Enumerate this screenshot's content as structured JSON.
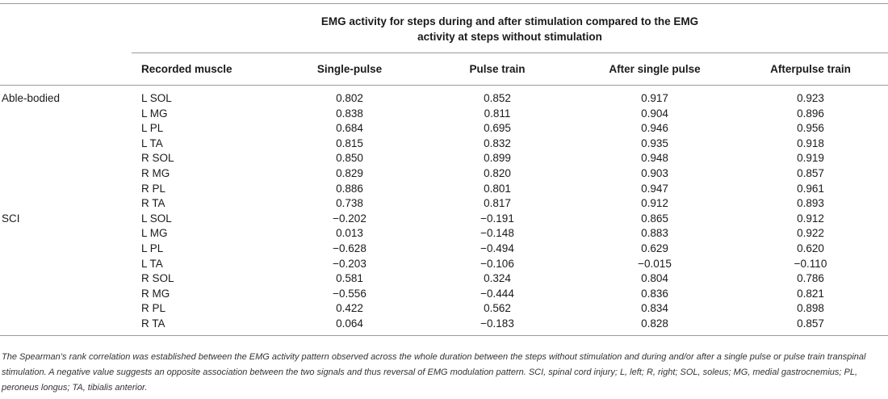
{
  "table": {
    "group_header": "EMG activity for steps during and after stimulation compared to the EMG activity at steps without stimulation",
    "columns": [
      "",
      "Recorded muscle",
      "Single-pulse",
      "Pulse train",
      "After single pulse",
      "Afterpulse train"
    ],
    "rows": [
      {
        "group": "Able-bodied",
        "muscle": "L SOL",
        "v": [
          "0.802",
          "0.852",
          "0.917",
          "0.923"
        ]
      },
      {
        "group": "",
        "muscle": "L MG",
        "v": [
          "0.838",
          "0.811",
          "0.904",
          "0.896"
        ]
      },
      {
        "group": "",
        "muscle": "L PL",
        "v": [
          "0.684",
          "0.695",
          "0.946",
          "0.956"
        ]
      },
      {
        "group": "",
        "muscle": "L TA",
        "v": [
          "0.815",
          "0.832",
          "0.935",
          "0.918"
        ]
      },
      {
        "group": "",
        "muscle": "R SOL",
        "v": [
          "0.850",
          "0.899",
          "0.948",
          "0.919"
        ]
      },
      {
        "group": "",
        "muscle": "R MG",
        "v": [
          "0.829",
          "0.820",
          "0.903",
          "0.857"
        ]
      },
      {
        "group": "",
        "muscle": "R PL",
        "v": [
          "0.886",
          "0.801",
          "0.947",
          "0.961"
        ]
      },
      {
        "group": "",
        "muscle": "R TA",
        "v": [
          "0.738",
          "0.817",
          "0.912",
          "0.893"
        ]
      },
      {
        "group": "SCI",
        "muscle": "L SOL",
        "v": [
          "−0.202",
          "−0.191",
          "0.865",
          "0.912"
        ]
      },
      {
        "group": "",
        "muscle": "L MG",
        "v": [
          "0.013",
          "−0.148",
          "0.883",
          "0.922"
        ]
      },
      {
        "group": "",
        "muscle": "L PL",
        "v": [
          "−0.628",
          "−0.494",
          "0.629",
          "0.620"
        ]
      },
      {
        "group": "",
        "muscle": "L TA",
        "v": [
          "−0.203",
          "−0.106",
          "−0.015",
          "−0.110"
        ]
      },
      {
        "group": "",
        "muscle": "R SOL",
        "v": [
          "0.581",
          "0.324",
          "0.804",
          "0.786"
        ]
      },
      {
        "group": "",
        "muscle": "R MG",
        "v": [
          "−0.556",
          "−0.444",
          "0.836",
          "0.821"
        ]
      },
      {
        "group": "",
        "muscle": "R PL",
        "v": [
          "0.422",
          "0.562",
          "0.834",
          "0.898"
        ]
      },
      {
        "group": "",
        "muscle": "R TA",
        "v": [
          "0.064",
          "−0.183",
          "0.828",
          "0.857"
        ]
      }
    ]
  },
  "footnote": "The Spearman’s rank correlation was established between the EMG activity pattern observed across the whole duration between the steps without stimulation and during and/or after a single pulse or pulse train transpinal stimulation. A negative value suggests an opposite association between the two signals and thus reversal of EMG modulation pattern. SCI, spinal cord injury; L, left; R, right; SOL, soleus; MG, medial gastrocnemius; PL, peroneus longus; TA, tibialis anterior."
}
